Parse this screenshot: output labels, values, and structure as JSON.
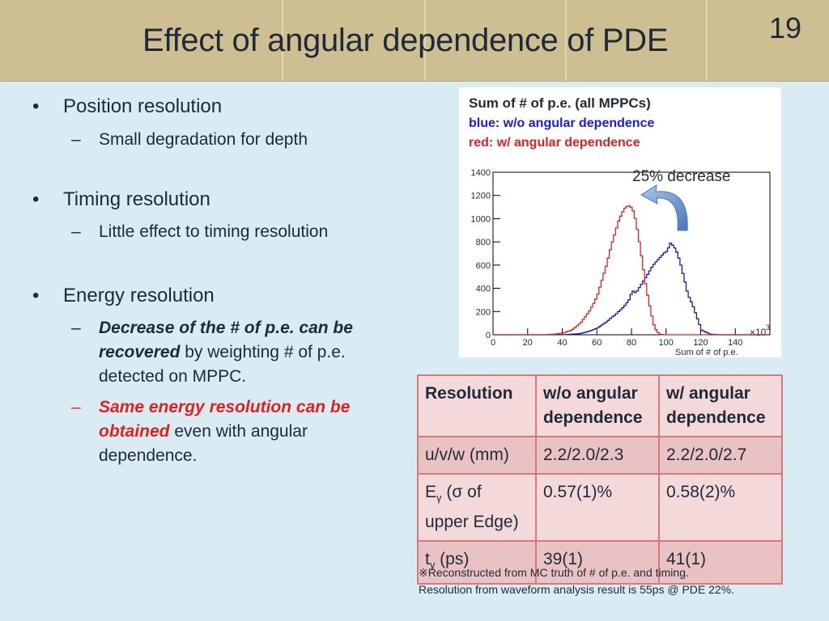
{
  "slide": {
    "title": "Effect of angular dependence of PDE",
    "page_number": "19"
  },
  "bullets": [
    {
      "text": "Position resolution",
      "sub": "Small degradation for depth"
    },
    {
      "text": "Timing resolution",
      "sub": "Little effect to timing resolution"
    },
    {
      "text": "Energy resolution",
      "sub1_em": "Decrease of the # of p.e. can be recovered",
      "sub1_rest": " by weighting # of p.e. detected on MPPC.",
      "sub2_em": "Same energy resolution can be obtained",
      "sub2_rest": " even with angular dependence."
    }
  ],
  "bullet_marker": "•",
  "dash_marker": "–",
  "chart_legend": {
    "line1": "Sum of # of p.e. (all MPPCs)",
    "line2": "blue: w/o angular dependence",
    "line3": "red: w/ angular dependence",
    "annotation": "25% decrease",
    "multiplier": "×10",
    "multiplier_exp": "3"
  },
  "chart_data": {
    "type": "line",
    "title": "Sum of # of p.e. (all MPPCs)",
    "xlabel": "Sum of # of p.e.",
    "x_unit_multiplier": 1000,
    "xlim": [
      0,
      160
    ],
    "ylim": [
      0,
      1400
    ],
    "x_ticks": [
      0,
      20,
      40,
      60,
      80,
      100,
      120,
      140
    ],
    "y_ticks": [
      0,
      200,
      400,
      600,
      800,
      1000,
      1200,
      1400
    ],
    "series": [
      {
        "name": "blue: w/o angular dependence",
        "color": "#1a1aa0",
        "x": [
          40,
          45,
          50,
          55,
          60,
          62,
          65,
          68,
          70,
          72,
          75,
          78,
          80,
          82,
          85,
          88,
          90,
          92,
          95,
          98,
          100,
          102,
          104,
          106,
          108,
          110,
          112,
          115,
          118,
          120,
          125,
          130
        ],
        "y": [
          0,
          5,
          10,
          30,
          60,
          80,
          110,
          150,
          170,
          200,
          240,
          300,
          380,
          360,
          430,
          500,
          550,
          600,
          650,
          700,
          720,
          790,
          760,
          700,
          600,
          480,
          350,
          250,
          120,
          40,
          5,
          0
        ]
      },
      {
        "name": "red: w/ angular dependence",
        "color": "#e0211d",
        "x": [
          30,
          35,
          40,
          45,
          50,
          52,
          55,
          58,
          60,
          62,
          65,
          68,
          70,
          72,
          74,
          76,
          78,
          80,
          82,
          84,
          86,
          88,
          90,
          92,
          94,
          96,
          98
        ],
        "y": [
          0,
          5,
          15,
          40,
          100,
          140,
          200,
          280,
          350,
          450,
          600,
          780,
          880,
          980,
          1050,
          1100,
          1110,
          1090,
          980,
          800,
          600,
          400,
          250,
          100,
          30,
          5,
          0
        ]
      }
    ]
  },
  "table": {
    "headers": [
      "Resolution",
      "w/o angular dependence",
      "w/ angular dependence"
    ],
    "rows": [
      {
        "label": "u/v/w (mm)",
        "sub": "",
        "label_rest": "",
        "a": "2.2/2.0/2.3",
        "b": " 2.2/2.0/2.7"
      },
      {
        "label": "E",
        "sub": "γ",
        "label_rest": " (σ of upper Edge)",
        "a": "0.57(1)%",
        "b": "0.58(2)%"
      },
      {
        "label": "t",
        "sub": "γ",
        "label_rest": "  (ps)",
        "a": "39(1)",
        "b": "41(1)"
      }
    ]
  },
  "footnote": {
    "line1": "※Reconstructed from MC truth of # of p.e. and timing.",
    "line2": "Resolution from waveform analysis result is 55ps @ PDE 22%."
  }
}
